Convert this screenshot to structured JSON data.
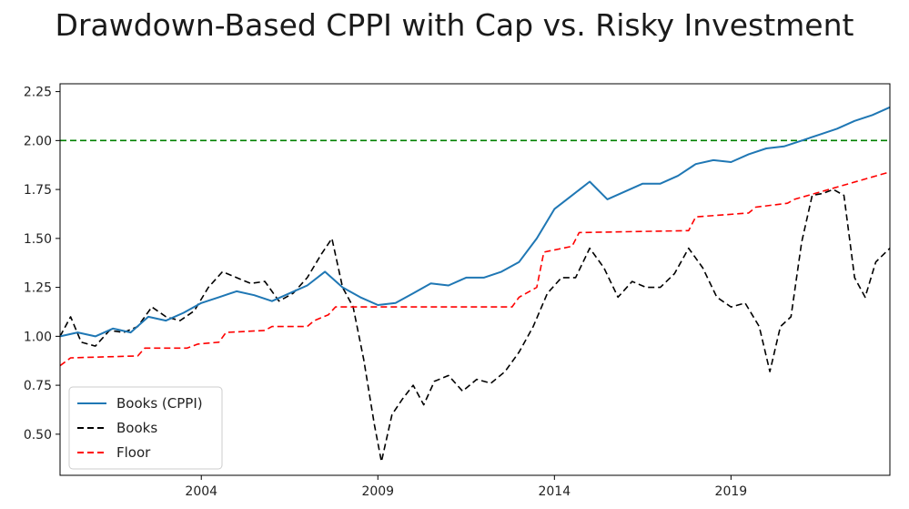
{
  "chart_data": {
    "type": "line",
    "title": "Drawdown-Based CPPI with Cap vs. Risky Investment",
    "xlabel": "",
    "ylabel": "",
    "xlim": [
      2000.0,
      2023.5
    ],
    "ylim": [
      0.29,
      2.29
    ],
    "y_ticks": [
      0.5,
      0.75,
      1.0,
      1.25,
      1.5,
      1.75,
      2.0,
      2.25
    ],
    "y_tick_labels": [
      "0.50",
      "0.75",
      "1.00",
      "1.25",
      "1.50",
      "1.75",
      "2.00",
      "2.25"
    ],
    "x_ticks": [
      2004,
      2009,
      2014,
      2019
    ],
    "x_tick_labels": [
      "2004",
      "2009",
      "2014",
      "2019"
    ],
    "grid": false,
    "legend_position": "lower-left",
    "legend": [
      "Books (CPPI)",
      "Books",
      "Floor"
    ],
    "reference_lines": [
      {
        "y": 2.0,
        "color": "#008000",
        "style": "dashed",
        "label": ""
      }
    ],
    "series": [
      {
        "name": "Books (CPPI)",
        "color": "#1f77b4",
        "style": "solid",
        "x": [
          2000.0,
          2000.5,
          2001.0,
          2001.5,
          2002.0,
          2002.5,
          2003.0,
          2003.5,
          2004.0,
          2004.5,
          2005.0,
          2005.5,
          2006.0,
          2006.5,
          2007.0,
          2007.5,
          2008.0,
          2008.5,
          2009.0,
          2009.5,
          2010.0,
          2010.5,
          2011.0,
          2011.5,
          2012.0,
          2012.5,
          2013.0,
          2013.5,
          2014.0,
          2014.5,
          2015.0,
          2015.5,
          2016.0,
          2016.5,
          2017.0,
          2017.5,
          2018.0,
          2018.5,
          2019.0,
          2019.5,
          2020.0,
          2020.5,
          2021.0,
          2021.5,
          2022.0,
          2022.5,
          2023.0,
          2023.5
        ],
        "y": [
          1.0,
          1.02,
          1.0,
          1.04,
          1.02,
          1.1,
          1.08,
          1.12,
          1.17,
          1.2,
          1.23,
          1.21,
          1.18,
          1.22,
          1.26,
          1.33,
          1.25,
          1.2,
          1.16,
          1.17,
          1.22,
          1.27,
          1.26,
          1.3,
          1.3,
          1.33,
          1.38,
          1.5,
          1.65,
          1.72,
          1.79,
          1.7,
          1.74,
          1.78,
          1.78,
          1.82,
          1.88,
          1.9,
          1.89,
          1.93,
          1.96,
          1.97,
          2.0,
          2.03,
          2.06,
          2.1,
          2.13,
          2.17
        ]
      },
      {
        "name": "Books",
        "color": "#000000",
        "style": "dashed",
        "x": [
          2000.0,
          2000.3,
          2000.6,
          2001.0,
          2001.4,
          2001.8,
          2002.2,
          2002.6,
          2003.0,
          2003.4,
          2003.8,
          2004.2,
          2004.6,
          2005.0,
          2005.4,
          2005.8,
          2006.2,
          2006.6,
          2007.0,
          2007.4,
          2007.7,
          2008.0,
          2008.3,
          2008.6,
          2008.9,
          2009.1,
          2009.4,
          2009.7,
          2010.0,
          2010.3,
          2010.6,
          2011.0,
          2011.4,
          2011.8,
          2012.2,
          2012.6,
          2013.0,
          2013.4,
          2013.8,
          2014.2,
          2014.6,
          2015.0,
          2015.4,
          2015.8,
          2016.2,
          2016.6,
          2017.0,
          2017.4,
          2017.8,
          2018.2,
          2018.6,
          2019.0,
          2019.4,
          2019.8,
          2020.1,
          2020.4,
          2020.7,
          2021.0,
          2021.3,
          2021.6,
          2021.9,
          2022.2,
          2022.5,
          2022.8,
          2023.1,
          2023.5
        ],
        "y": [
          1.0,
          1.1,
          0.97,
          0.95,
          1.03,
          1.02,
          1.05,
          1.15,
          1.1,
          1.08,
          1.13,
          1.25,
          1.33,
          1.3,
          1.27,
          1.28,
          1.18,
          1.22,
          1.3,
          1.42,
          1.5,
          1.25,
          1.15,
          0.88,
          0.55,
          0.36,
          0.6,
          0.68,
          0.75,
          0.65,
          0.77,
          0.8,
          0.72,
          0.78,
          0.76,
          0.82,
          0.92,
          1.05,
          1.22,
          1.3,
          1.3,
          1.45,
          1.35,
          1.2,
          1.28,
          1.25,
          1.25,
          1.32,
          1.45,
          1.35,
          1.2,
          1.15,
          1.17,
          1.05,
          0.82,
          1.05,
          1.1,
          1.48,
          1.72,
          1.73,
          1.75,
          1.72,
          1.3,
          1.2,
          1.38,
          1.45
        ]
      },
      {
        "name": "Floor",
        "color": "#ff0000",
        "style": "dashed",
        "x": [
          2000.0,
          2000.3,
          2002.2,
          2002.4,
          2003.6,
          2003.9,
          2004.5,
          2004.7,
          2005.8,
          2006.0,
          2007.0,
          2007.2,
          2007.6,
          2007.8,
          2012.8,
          2013.0,
          2013.5,
          2013.7,
          2014.5,
          2014.7,
          2017.8,
          2018.0,
          2019.5,
          2019.7,
          2020.6,
          2020.8,
          2023.5
        ],
        "y": [
          0.85,
          0.89,
          0.9,
          0.94,
          0.94,
          0.96,
          0.97,
          1.02,
          1.03,
          1.05,
          1.05,
          1.08,
          1.11,
          1.15,
          1.15,
          1.2,
          1.25,
          1.43,
          1.46,
          1.53,
          1.54,
          1.61,
          1.63,
          1.66,
          1.68,
          1.7,
          1.84
        ]
      }
    ]
  }
}
